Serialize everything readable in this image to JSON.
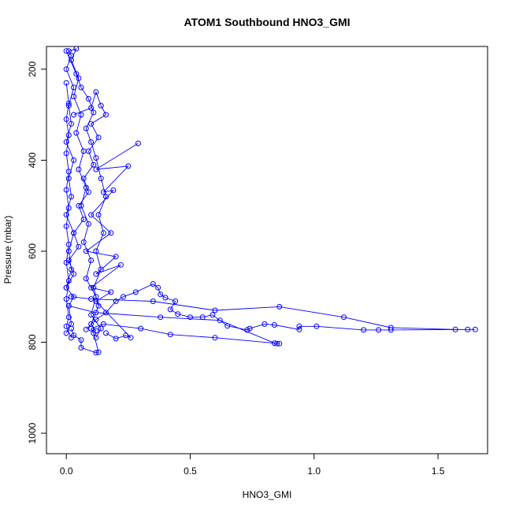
{
  "chart_data": {
    "type": "line",
    "title": "ATOM1 Southbound HNO3_GMI",
    "xlabel": "HNO3_GMI",
    "ylabel": "Pressure (mbar)",
    "xlim": [
      -0.08,
      1.7
    ],
    "ylim": [
      1045,
      150
    ],
    "y_reversed": true,
    "x_ticks": [
      "0.0",
      "0.5",
      "1.0",
      "1.5"
    ],
    "y_ticks": [
      "200",
      "400",
      "600",
      "800",
      "1000"
    ],
    "grid": false,
    "legend": "none",
    "color": "#0000ff",
    "series": [
      {
        "points": [
          [
            0.0,
            780
          ],
          [
            0.02,
            760
          ],
          [
            0.01,
            720
          ],
          [
            0.03,
            700
          ],
          [
            0.0,
            680
          ],
          [
            0.02,
            640
          ],
          [
            0.01,
            600
          ],
          [
            0.03,
            560
          ],
          [
            0.0,
            520
          ],
          [
            0.02,
            480
          ],
          [
            0.01,
            440
          ],
          [
            0.03,
            400
          ],
          [
            0.0,
            360
          ],
          [
            0.02,
            320
          ],
          [
            0.01,
            280
          ],
          [
            0.03,
            240
          ],
          [
            0.0,
            200
          ],
          [
            0.02,
            170
          ],
          [
            0.01,
            160
          ],
          [
            0.04,
            155
          ],
          [
            0.02,
            180
          ],
          [
            0.05,
            220
          ],
          [
            0.03,
            260
          ],
          [
            0.06,
            300
          ],
          [
            0.04,
            340
          ],
          [
            0.07,
            380
          ],
          [
            0.05,
            420
          ],
          [
            0.08,
            460
          ],
          [
            0.06,
            500
          ],
          [
            0.09,
            540
          ],
          [
            0.07,
            580
          ],
          [
            0.1,
            620
          ],
          [
            0.08,
            660
          ],
          [
            0.12,
            700
          ],
          [
            0.1,
            740
          ],
          [
            0.14,
            770
          ],
          [
            0.12,
            790
          ]
        ]
      },
      {
        "points": [
          [
            0.29,
            363
          ],
          [
            0.12,
            420
          ],
          [
            0.25,
            413
          ],
          [
            0.15,
            470
          ],
          [
            0.19,
            466
          ],
          [
            0.1,
            520
          ],
          [
            0.18,
            560
          ],
          [
            0.08,
            600
          ],
          [
            0.2,
            612
          ],
          [
            0.12,
            650
          ],
          [
            0.22,
            630
          ],
          [
            0.1,
            680
          ],
          [
            0.18,
            690
          ],
          [
            0.12,
            710
          ],
          [
            0.26,
            790
          ],
          [
            0.24,
            785
          ],
          [
            0.2,
            792
          ],
          [
            0.16,
            780
          ]
        ]
      },
      {
        "points": [
          [
            0.02,
            700
          ],
          [
            0.1,
            705
          ],
          [
            0.35,
            710
          ],
          [
            0.6,
            730
          ],
          [
            0.86,
            722
          ],
          [
            1.12,
            745
          ],
          [
            1.31,
            768
          ],
          [
            1.57,
            772
          ],
          [
            1.62,
            772
          ],
          [
            1.65,
            772
          ],
          [
            1.31,
            773
          ],
          [
            1.26,
            773
          ],
          [
            1.2,
            773
          ],
          [
            1.01,
            765
          ],
          [
            0.94,
            765
          ],
          [
            0.94,
            772
          ],
          [
            0.84,
            762
          ],
          [
            0.8,
            760
          ],
          [
            0.74,
            770
          ],
          [
            0.73,
            773
          ],
          [
            0.65,
            764
          ],
          [
            0.59,
            740
          ],
          [
            0.55,
            745
          ],
          [
            0.5,
            745
          ],
          [
            0.45,
            738
          ],
          [
            0.42,
            728
          ],
          [
            0.44,
            710
          ],
          [
            0.4,
            702
          ],
          [
            0.38,
            695
          ],
          [
            0.37,
            680
          ],
          [
            0.35,
            672
          ],
          [
            0.28,
            690
          ],
          [
            0.23,
            700
          ],
          [
            0.2,
            710
          ],
          [
            0.16,
            735
          ],
          [
            0.12,
            750
          ],
          [
            0.08,
            772
          ]
        ]
      },
      {
        "points": [
          [
            0.01,
            720
          ],
          [
            0.12,
            735
          ],
          [
            0.38,
            745
          ],
          [
            0.62,
            752
          ],
          [
            0.84,
            802
          ],
          [
            0.85,
            803
          ],
          [
            0.86,
            803
          ],
          [
            0.6,
            790
          ],
          [
            0.42,
            783
          ],
          [
            0.3,
            770
          ],
          [
            0.15,
            760
          ],
          [
            0.1,
            770
          ],
          [
            0.11,
            780
          ],
          [
            0.13,
            822
          ],
          [
            0.12,
            823
          ],
          [
            0.06,
            812
          ],
          [
            0.06,
            795
          ],
          [
            0.03,
            785
          ],
          [
            0.02,
            770
          ]
        ]
      },
      {
        "points": [
          [
            0.03,
            300
          ],
          [
            0.1,
            285
          ],
          [
            0.12,
            250
          ],
          [
            0.14,
            280
          ],
          [
            0.16,
            300
          ],
          [
            0.1,
            320
          ],
          [
            0.13,
            350
          ],
          [
            0.09,
            380
          ],
          [
            0.11,
            410
          ],
          [
            0.07,
            440
          ],
          [
            0.09,
            470
          ],
          [
            0.05,
            500
          ],
          [
            0.07,
            530
          ],
          [
            0.03,
            560
          ],
          [
            0.05,
            590
          ],
          [
            0.01,
            620
          ],
          [
            0.03,
            650
          ],
          [
            0.0,
            680
          ]
        ]
      },
      {
        "points": [
          [
            0.0,
            160
          ],
          [
            0.04,
            210
          ],
          [
            0.06,
            240
          ],
          [
            0.09,
            265
          ],
          [
            0.11,
            295
          ],
          [
            0.08,
            330
          ],
          [
            0.1,
            360
          ],
          [
            0.12,
            395
          ],
          [
            0.14,
            440
          ],
          [
            0.16,
            480
          ],
          [
            0.13,
            520
          ],
          [
            0.15,
            560
          ],
          [
            0.12,
            600
          ],
          [
            0.14,
            640
          ],
          [
            0.11,
            680
          ],
          [
            0.13,
            720
          ],
          [
            0.1,
            760
          ],
          [
            0.12,
            775
          ]
        ]
      },
      {
        "points": [
          [
            0.0,
            230
          ],
          [
            0.01,
            275
          ],
          [
            0.0,
            310
          ],
          [
            0.01,
            345
          ],
          [
            0.0,
            385
          ],
          [
            0.01,
            425
          ],
          [
            0.0,
            465
          ],
          [
            0.01,
            505
          ],
          [
            0.0,
            545
          ],
          [
            0.01,
            585
          ],
          [
            0.0,
            625
          ],
          [
            0.01,
            665
          ],
          [
            0.0,
            705
          ],
          [
            0.01,
            745
          ],
          [
            0.0,
            765
          ],
          [
            0.02,
            790
          ]
        ]
      }
    ]
  }
}
